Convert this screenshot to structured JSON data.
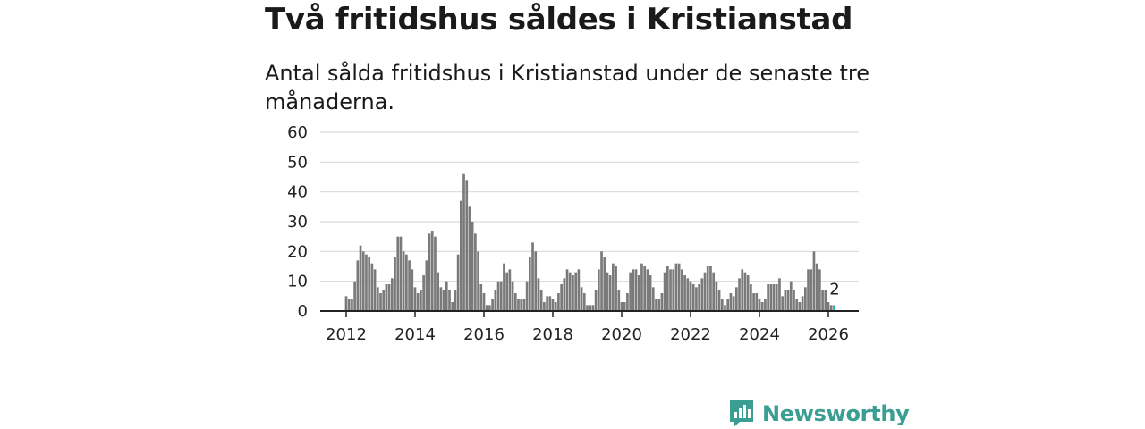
{
  "title": "Två fritidshus såldes i Kristianstad",
  "subtitle": "Antal sålda fritidshus i Kristianstad under de senaste tre månaderna.",
  "brand": {
    "name": "Newsworthy",
    "color": "#3a9e93"
  },
  "colors": {
    "bar": "#7a7a7a",
    "highlight": "#2fb3a6",
    "grid": "#d9d9d9",
    "axis": "#222222"
  },
  "chart_data": {
    "type": "bar",
    "title": "Två fritidshus såldes i Kristianstad",
    "xlabel": "",
    "ylabel": "",
    "ylim": [
      0,
      60
    ],
    "yticks": [
      0,
      10,
      20,
      30,
      40,
      50,
      60
    ],
    "xticks": [
      "2012",
      "2014",
      "2016",
      "2018",
      "2020",
      "2022",
      "2024",
      "2026"
    ],
    "x_start": "2012-01",
    "annotation": {
      "label": "2",
      "value": 2,
      "period": "2026-01"
    },
    "values": [
      5,
      4,
      4,
      10,
      17,
      22,
      20,
      19,
      18,
      16,
      14,
      8,
      6,
      7,
      9,
      9,
      11,
      18,
      25,
      25,
      20,
      19,
      17,
      14,
      8,
      6,
      7,
      12,
      17,
      26,
      27,
      25,
      13,
      8,
      7,
      10,
      7,
      3,
      7,
      19,
      37,
      46,
      44,
      35,
      30,
      26,
      20,
      9,
      6,
      2,
      2,
      4,
      7,
      10,
      10,
      16,
      13,
      14,
      10,
      6,
      4,
      4,
      4,
      10,
      18,
      23,
      20,
      11,
      7,
      3,
      5,
      5,
      4,
      3,
      6,
      9,
      11,
      14,
      13,
      12,
      13,
      14,
      8,
      6,
      2,
      2,
      2,
      7,
      14,
      20,
      18,
      13,
      12,
      16,
      15,
      7,
      3,
      3,
      6,
      13,
      14,
      14,
      12,
      16,
      15,
      14,
      12,
      8,
      4,
      4,
      6,
      13,
      15,
      14,
      14,
      16,
      16,
      14,
      12,
      11,
      10,
      9,
      8,
      9,
      11,
      13,
      15,
      15,
      13,
      10,
      7,
      4,
      2,
      4,
      6,
      5,
      8,
      11,
      14,
      13,
      12,
      9,
      6,
      6,
      4,
      3,
      4,
      9,
      9,
      9,
      9,
      11,
      5,
      7,
      7,
      10,
      7,
      4,
      3,
      5,
      8,
      14,
      14,
      20,
      16,
      14,
      7,
      7,
      3,
      2,
      2
    ]
  }
}
